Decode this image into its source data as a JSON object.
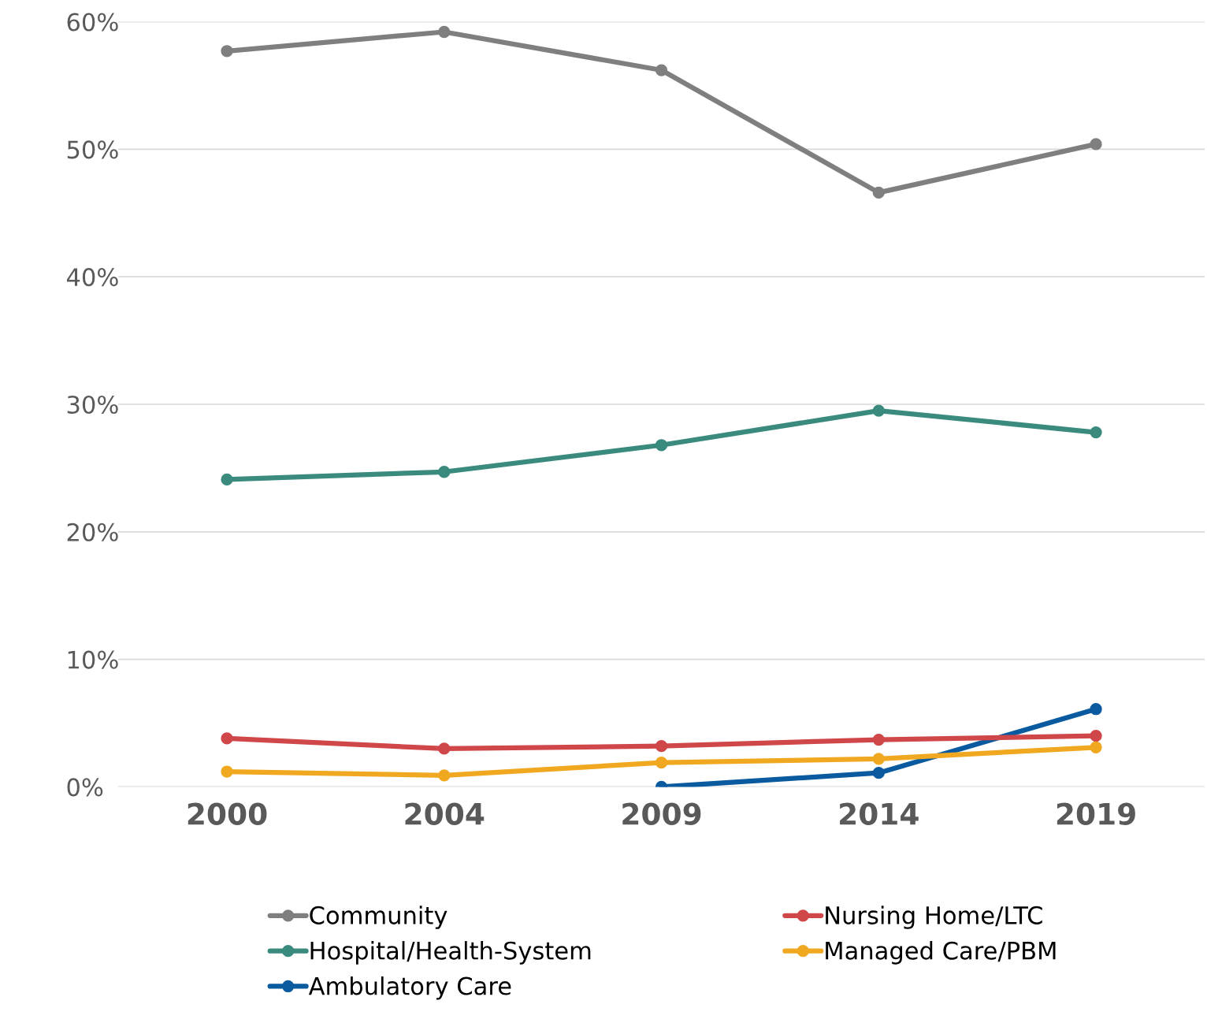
{
  "chart_data": {
    "type": "line",
    "categories": [
      "2000",
      "2004",
      "2009",
      "2014",
      "2019"
    ],
    "series": [
      {
        "name": "Community",
        "color": "#7f7f7f",
        "values": [
          57.7,
          59.2,
          56.2,
          46.6,
          50.4
        ]
      },
      {
        "name": "Hospital/Health-System",
        "color": "#3a8a7e",
        "values": [
          24.1,
          24.7,
          26.8,
          29.5,
          27.8
        ]
      },
      {
        "name": "Ambulatory Care",
        "color": "#0a5aa0",
        "values": [
          null,
          null,
          0,
          1.1,
          6.1
        ]
      },
      {
        "name": "Nursing Home/LTC",
        "color": "#d0474a",
        "values": [
          3.8,
          3.0,
          3.2,
          3.7,
          4.0
        ]
      },
      {
        "name": "Managed Care/PBM",
        "color": "#f0a820",
        "values": [
          1.2,
          0.9,
          1.9,
          2.2,
          3.1
        ]
      }
    ],
    "ylim": [
      0,
      60
    ],
    "yticks": [
      {
        "value": 0,
        "label": "0%"
      },
      {
        "value": 10,
        "label": "10%"
      },
      {
        "value": 20,
        "label": "20%"
      },
      {
        "value": 30,
        "label": "30%"
      },
      {
        "value": 40,
        "label": "40%"
      },
      {
        "value": 50,
        "label": "50%"
      },
      {
        "value": 60,
        "label": "60%"
      }
    ],
    "grid": "y",
    "legend": "bottom",
    "marker": "circle",
    "line_style": "solid"
  }
}
